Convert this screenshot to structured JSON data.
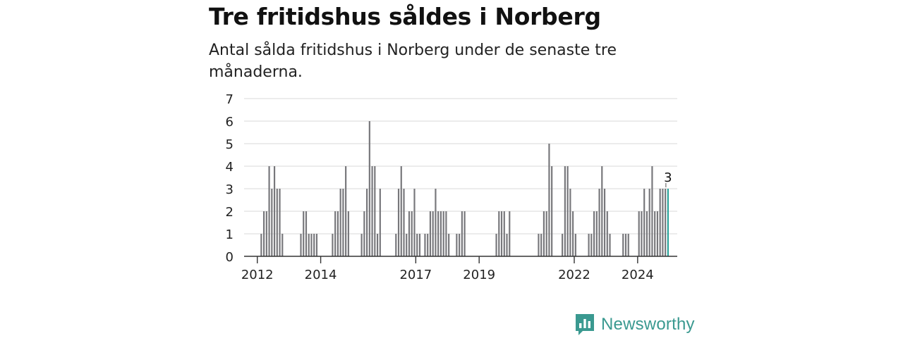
{
  "title": "Tre fritidshus såldes i Norberg",
  "subtitle": "Antal sålda fritidshus i Norberg under de senaste tre månaderna.",
  "brand": {
    "name": "Newsworthy",
    "icon": "newsworthy-logo-icon",
    "color": "#3a9990"
  },
  "chart_data": {
    "type": "bar",
    "xlabel": "",
    "ylabel": "",
    "ylim": [
      0,
      7
    ],
    "y_ticks": [
      0,
      1,
      2,
      3,
      4,
      5,
      6,
      7
    ],
    "x_range": [
      "2011-08",
      "2025-04"
    ],
    "x_ticks": [
      {
        "label": "2012",
        "month": "2012-01"
      },
      {
        "label": "2014",
        "month": "2014-01"
      },
      {
        "label": "2017",
        "month": "2017-01"
      },
      {
        "label": "2019",
        "month": "2019-01"
      },
      {
        "label": "2022",
        "month": "2022-01"
      },
      {
        "label": "2024",
        "month": "2024-01"
      }
    ],
    "grid": true,
    "bar_color": "#77777b",
    "highlight_color": "#2aa39a",
    "highlight_label": "3",
    "months": [
      "2012-02",
      "2012-03",
      "2012-04",
      "2012-05",
      "2012-06",
      "2012-07",
      "2012-08",
      "2012-09",
      "2012-10",
      "2012-11",
      "2013-05",
      "2013-06",
      "2013-07",
      "2013-08",
      "2013-09",
      "2013-10",
      "2013-11",
      "2014-05",
      "2014-06",
      "2014-07",
      "2014-08",
      "2014-09",
      "2014-10",
      "2014-11",
      "2015-04",
      "2015-05",
      "2015-06",
      "2015-07",
      "2015-08",
      "2015-09",
      "2015-10",
      "2015-11",
      "2016-05",
      "2016-06",
      "2016-07",
      "2016-08",
      "2016-09",
      "2016-10",
      "2016-11",
      "2016-12",
      "2017-01",
      "2017-02",
      "2017-04",
      "2017-05",
      "2017-06",
      "2017-07",
      "2017-08",
      "2017-09",
      "2017-10",
      "2017-11",
      "2017-12",
      "2018-01",
      "2018-04",
      "2018-05",
      "2018-06",
      "2018-07",
      "2019-07",
      "2019-08",
      "2019-09",
      "2019-10",
      "2019-11",
      "2019-12",
      "2020-11",
      "2020-12",
      "2021-01",
      "2021-02",
      "2021-03",
      "2021-04",
      "2021-08",
      "2021-09",
      "2021-10",
      "2021-11",
      "2021-12",
      "2022-01",
      "2022-06",
      "2022-07",
      "2022-08",
      "2022-09",
      "2022-10",
      "2022-11",
      "2022-12",
      "2023-01",
      "2023-02",
      "2023-07",
      "2023-08",
      "2023-09",
      "2024-01",
      "2024-02",
      "2024-03",
      "2024-04",
      "2024-05",
      "2024-06",
      "2024-07",
      "2024-08",
      "2024-09",
      "2024-10",
      "2024-11",
      "2024-12"
    ],
    "values": [
      1,
      2,
      2,
      4,
      3,
      4,
      3,
      3,
      1,
      0,
      1,
      2,
      2,
      1,
      1,
      1,
      1,
      1,
      2,
      2,
      3,
      3,
      4,
      2,
      1,
      2,
      3,
      6,
      4,
      4,
      1,
      3,
      1,
      3,
      4,
      3,
      1,
      2,
      2,
      3,
      1,
      1,
      1,
      1,
      2,
      2,
      3,
      2,
      2,
      2,
      2,
      1,
      1,
      1,
      2,
      2,
      1,
      2,
      2,
      2,
      1,
      2,
      1,
      1,
      2,
      2,
      5,
      4,
      1,
      4,
      4,
      3,
      2,
      1,
      1,
      1,
      2,
      2,
      3,
      4,
      3,
      2,
      1,
      1,
      1,
      1,
      2,
      2,
      3,
      2,
      3,
      4,
      2,
      2,
      3,
      3,
      3,
      3
    ]
  }
}
